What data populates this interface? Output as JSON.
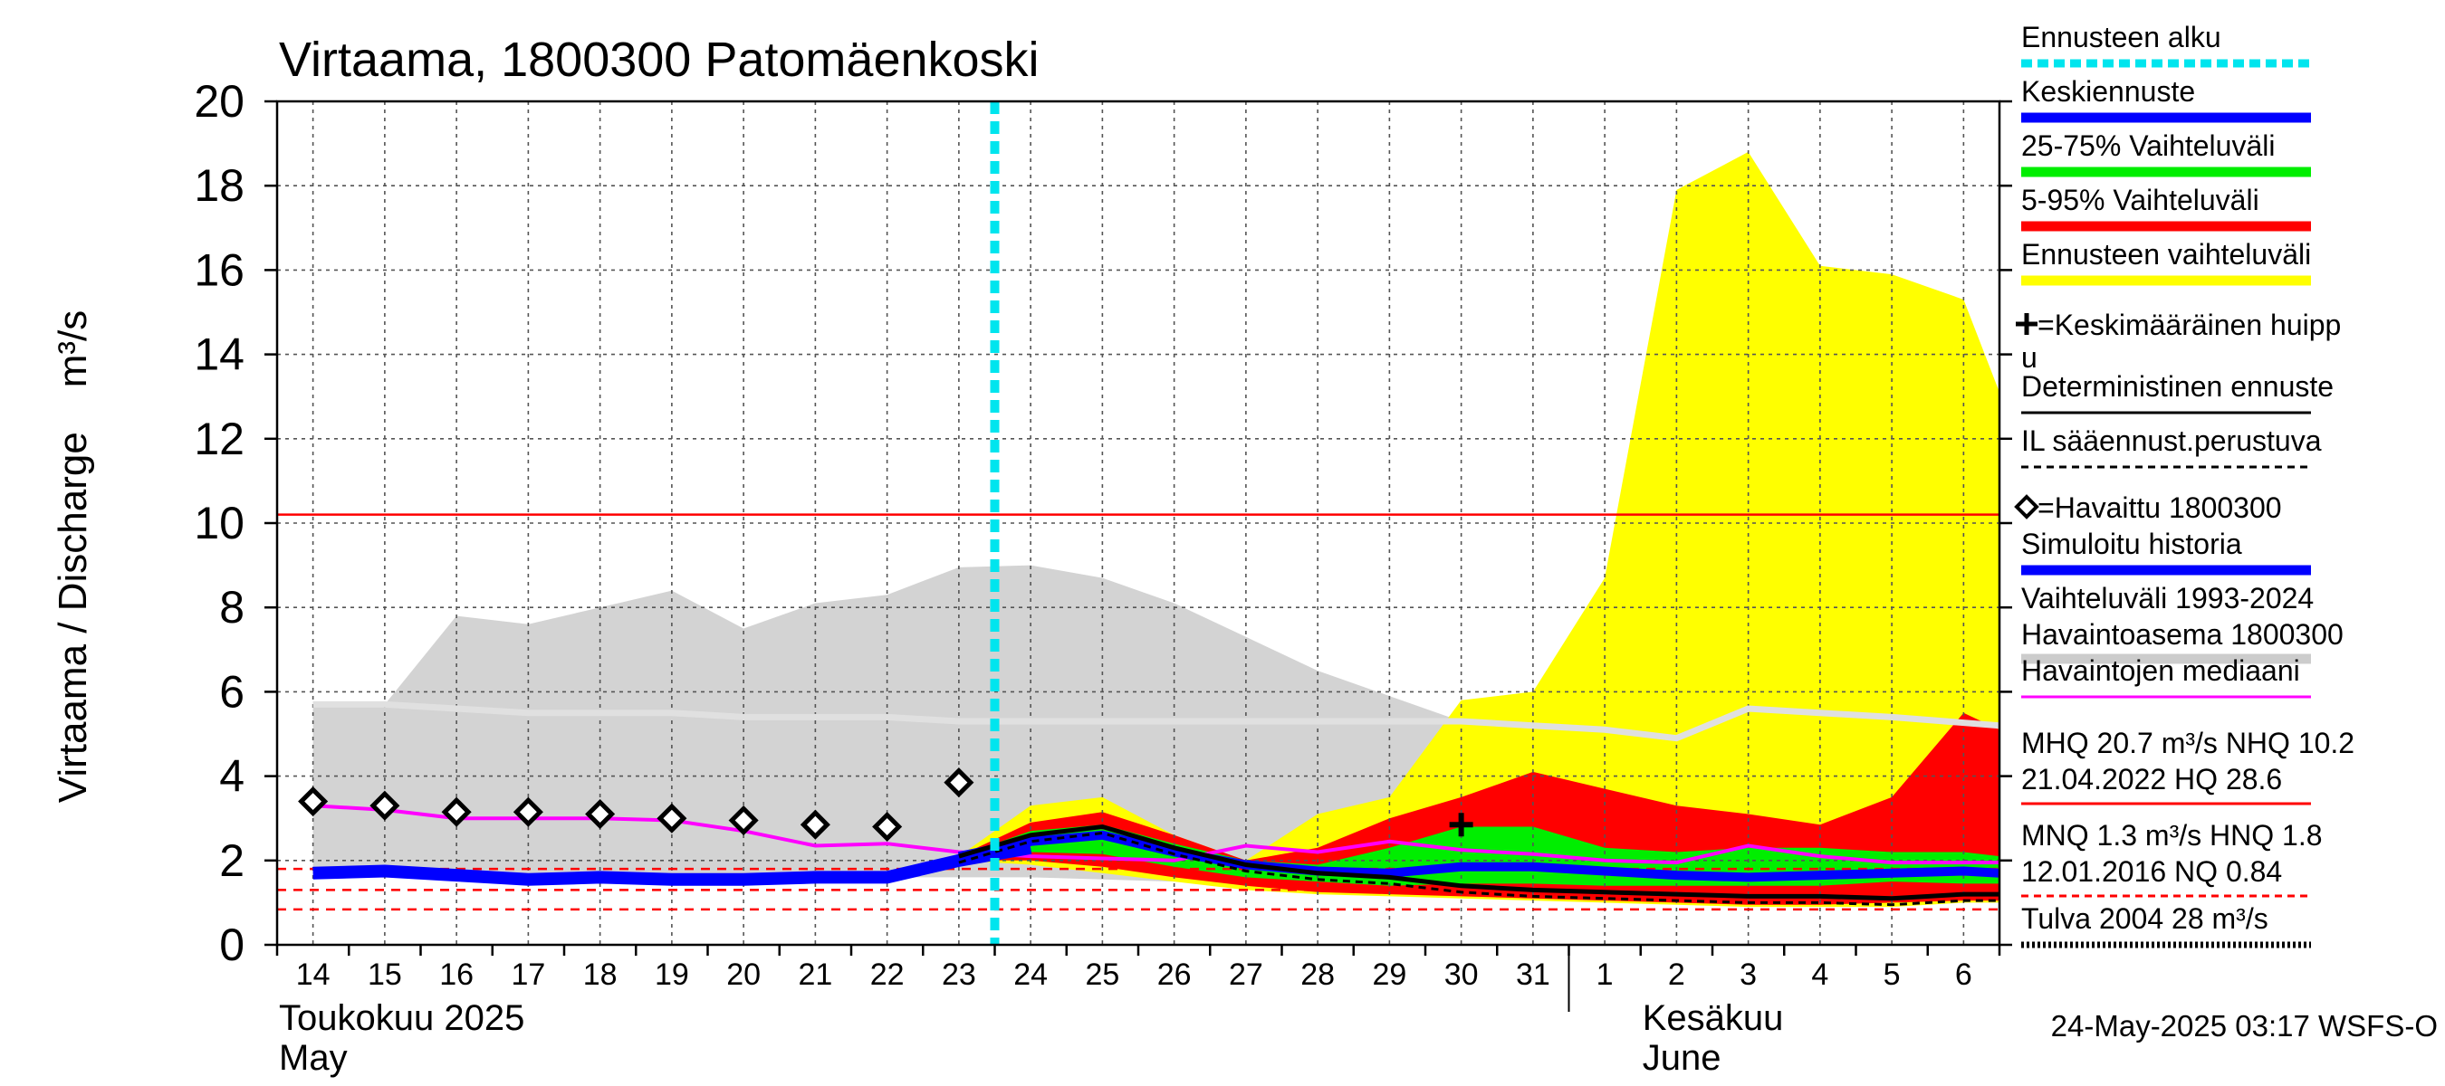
{
  "chart_data": {
    "type": "area",
    "title": "Virtaama, 1800300 Patomäenkoski",
    "ylabel": "Virtaama / Discharge    m³/s",
    "ylim": [
      0,
      20
    ],
    "yticks": [
      "0",
      "2",
      "4",
      "6",
      "8",
      "10",
      "12",
      "14",
      "16",
      "18",
      "20"
    ],
    "grid": true,
    "x_tick_labels": [
      "14",
      "15",
      "16",
      "17",
      "18",
      "19",
      "20",
      "21",
      "22",
      "23",
      "24",
      "25",
      "26",
      "27",
      "28",
      "29",
      "30",
      "31",
      "1",
      "2",
      "3",
      "4",
      "5",
      "6"
    ],
    "month_labels": [
      {
        "line1": "Toukokuu  2025",
        "line2": "May"
      },
      {
        "line1": "Kesäkuu",
        "line2": "June"
      }
    ],
    "timestamp": "24-May-2025 03:17 WSFS-O",
    "forecast_start_day": 24.0,
    "reference_lines": [
      {
        "name": "NHQ",
        "value": 10.2,
        "style": "solid",
        "color": "#ff0000"
      },
      {
        "name": "MNQ",
        "value": 1.3,
        "style": "dashed",
        "color": "#ff0000"
      },
      {
        "name": "HNQ",
        "value": 1.8,
        "style": "dashed",
        "color": "#ff0000"
      },
      {
        "name": "NQ",
        "value": 0.84,
        "style": "dashed",
        "color": "#ff0000"
      }
    ],
    "history_range": {
      "x": [
        14,
        15,
        16,
        17,
        18,
        19,
        20,
        21,
        22,
        23,
        24,
        25,
        26,
        27,
        28,
        29,
        30,
        31,
        32,
        33,
        34,
        35,
        36,
        37.5
      ],
      "upper": [
        5.7,
        5.7,
        7.8,
        7.6,
        8.0,
        8.4,
        7.5,
        8.1,
        8.3,
        8.95,
        9.0,
        8.7,
        8.1,
        7.3,
        6.5,
        5.9,
        5.3,
        5.2,
        5.1,
        5.0,
        5.6,
        5.5,
        5.3,
        5.2
      ],
      "lower": [
        1.8,
        1.8,
        1.75,
        1.7,
        1.6,
        1.6,
        1.6,
        1.6,
        1.6,
        1.6,
        1.6,
        1.55,
        1.5,
        1.45,
        1.4,
        1.35,
        1.3,
        1.3,
        1.3,
        1.3,
        1.3,
        1.3,
        1.3,
        1.3
      ]
    },
    "history_median": {
      "x": [
        14,
        15,
        16,
        17,
        18,
        19,
        20,
        21,
        22,
        23,
        24,
        25,
        26,
        27,
        28,
        29,
        30,
        31,
        32,
        33,
        34,
        35,
        36,
        37.5
      ],
      "values": [
        5.7,
        5.7,
        5.6,
        5.5,
        5.5,
        5.5,
        5.4,
        5.4,
        5.4,
        5.3,
        5.3,
        5.3,
        5.3,
        5.3,
        5.3,
        5.3,
        5.3,
        5.2,
        5.1,
        4.9,
        5.6,
        5.5,
        5.4,
        5.2
      ]
    },
    "forecast_range": {
      "x": [
        23,
        24,
        25,
        26,
        27,
        28,
        29,
        30,
        31,
        32,
        33,
        34,
        35,
        36,
        37,
        37.5
      ],
      "upper": [
        2.1,
        3.3,
        3.5,
        2.6,
        2.0,
        3.1,
        3.5,
        5.8,
        6.0,
        8.7,
        17.9,
        18.8,
        16.1,
        15.9,
        15.3,
        13.1
      ],
      "lower": [
        2.0,
        1.9,
        1.7,
        1.5,
        1.3,
        1.2,
        1.15,
        1.1,
        1.05,
        1.0,
        0.95,
        0.9,
        0.9,
        0.9,
        1.0,
        1.0
      ]
    },
    "band_5_95": {
      "x": [
        23,
        24,
        25,
        26,
        27,
        28,
        29,
        30,
        31,
        32,
        33,
        34,
        35,
        36,
        37,
        37.5
      ],
      "upper": [
        2.1,
        2.9,
        3.15,
        2.6,
        2.0,
        2.3,
        3.0,
        3.5,
        4.1,
        3.7,
        3.3,
        3.1,
        2.85,
        3.5,
        5.5,
        5.1
      ],
      "lower": [
        2.0,
        2.0,
        1.85,
        1.6,
        1.4,
        1.25,
        1.2,
        1.15,
        1.1,
        1.05,
        1.0,
        0.95,
        0.95,
        1.0,
        1.05,
        1.05
      ]
    },
    "band_25_75": {
      "x": [
        23,
        24,
        25,
        26,
        27,
        28,
        29,
        30,
        31,
        32,
        33,
        34,
        35,
        36,
        37,
        37.5
      ],
      "upper": [
        2.1,
        2.7,
        2.85,
        2.4,
        2.0,
        1.9,
        2.3,
        2.8,
        2.8,
        2.3,
        2.2,
        2.3,
        2.3,
        2.2,
        2.2,
        2.1
      ],
      "lower": [
        2.05,
        2.2,
        2.15,
        1.85,
        1.6,
        1.5,
        1.4,
        1.45,
        1.45,
        1.4,
        1.4,
        1.4,
        1.4,
        1.5,
        1.45,
        1.45
      ]
    },
    "mean_forecast": {
      "x": [
        23,
        24,
        25,
        26,
        27,
        28,
        29,
        30,
        31,
        32,
        33,
        34,
        35,
        36,
        37,
        37.5
      ],
      "values": [
        2.1,
        2.45,
        2.6,
        2.2,
        1.9,
        1.75,
        1.7,
        1.85,
        1.85,
        1.75,
        1.65,
        1.6,
        1.65,
        1.7,
        1.75,
        1.7
      ]
    },
    "deterministic_forecast": {
      "x": [
        23,
        24,
        25,
        26,
        27,
        28,
        29,
        30,
        31,
        32,
        33,
        34,
        35,
        36,
        37,
        37.5
      ],
      "values": [
        2.1,
        2.6,
        2.8,
        2.3,
        1.9,
        1.7,
        1.6,
        1.4,
        1.3,
        1.25,
        1.2,
        1.15,
        1.15,
        1.1,
        1.2,
        1.2
      ]
    },
    "simulated_history": {
      "x": [
        14,
        15,
        16,
        17,
        18,
        19,
        20,
        21,
        22,
        23,
        24
      ],
      "values": [
        1.7,
        1.75,
        1.65,
        1.55,
        1.6,
        1.55,
        1.55,
        1.6,
        1.6,
        2.0,
        2.3
      ]
    },
    "observed_median": {
      "x": [
        14,
        15,
        16,
        17,
        18,
        19,
        20,
        21,
        22,
        23,
        24,
        25,
        26,
        27,
        28,
        29,
        30,
        31,
        32,
        33,
        34,
        35,
        36,
        37.5
      ],
      "values": [
        3.3,
        3.2,
        3.0,
        3.0,
        3.0,
        2.95,
        2.7,
        2.35,
        2.4,
        2.2,
        2.1,
        2.05,
        2.0,
        2.35,
        2.2,
        2.45,
        2.25,
        2.15,
        2.0,
        1.95,
        2.35,
        2.1,
        1.95,
        1.95
      ]
    },
    "observed": {
      "name": "Havaittu 1800300",
      "x": [
        14,
        15,
        16,
        17,
        18,
        19,
        20,
        21,
        22,
        23
      ],
      "values": [
        3.4,
        3.3,
        3.15,
        3.15,
        3.1,
        3.0,
        2.95,
        2.85,
        2.8,
        3.85
      ]
    },
    "mean_peak": {
      "x": 30.0,
      "value": 2.85
    }
  },
  "legend": [
    {
      "label": "Ennusteen alku",
      "color": "#00e5ee",
      "style": "dotted-thick"
    },
    {
      "label": "Keskiennuste",
      "color": "#0000ff",
      "style": "solid-thick"
    },
    {
      "label": "25-75% Vaihteluväli",
      "color": "#00ee00",
      "style": "solid-thick"
    },
    {
      "label": "5-95% Vaihteluväli",
      "color": "#ff0000",
      "style": "solid-thick"
    },
    {
      "label": "Ennusteen vaihteluväli",
      "color": "#ffff00",
      "style": "solid-thick"
    },
    {
      "label": "=Keskimääräinen huippu",
      "label_line1": "=Keskimääräinen huipp",
      "label_line2": "u",
      "marker": "plus"
    },
    {
      "label": "Deterministinen ennuste",
      "color": "#000000",
      "style": "solid"
    },
    {
      "label": "IL sääennust.perustuva",
      "color": "#000000",
      "style": "dashed"
    },
    {
      "label": "=Havaittu 1800300",
      "marker": "diamond"
    },
    {
      "label": "Simuloitu historia",
      "color": "#0000ff",
      "style": "solid-thick"
    },
    {
      "label": "Vaihteluväli 1993-2024",
      "label_line1": "Vaihteluväli 1993-2024",
      "label_line2": " Havaintoasema 1800300",
      "color": "#cccccc",
      "style": "solid-thick"
    },
    {
      "label": "Havaintojen mediaani",
      "color": "#ff00ff",
      "style": "solid"
    },
    {
      "label_line1": "MHQ 20.7 m³/s NHQ 10.2",
      "label_line2": "21.04.2022 HQ 28.6",
      "color": "#ff0000",
      "style": "solid-thin"
    },
    {
      "label_line1": "MNQ  1.3 m³/s HNQ  1.8",
      "label_line2": "12.01.2016 NQ 0.84",
      "color": "#ff0000",
      "style": "dashed"
    },
    {
      "label": "Tulva 2004 28 m³/s",
      "color": "#000000",
      "style": "dotted-thick"
    }
  ],
  "colors": {
    "history_range": "#d3d3d3",
    "history_median": "#e0e0e0",
    "forecast_range": "#ffff00",
    "band_5_95": "#ff0000",
    "band_25_75": "#00ee00",
    "mean": "#0000ff",
    "observed_median": "#ff00ff",
    "forecast_start": "#00e5ee"
  }
}
